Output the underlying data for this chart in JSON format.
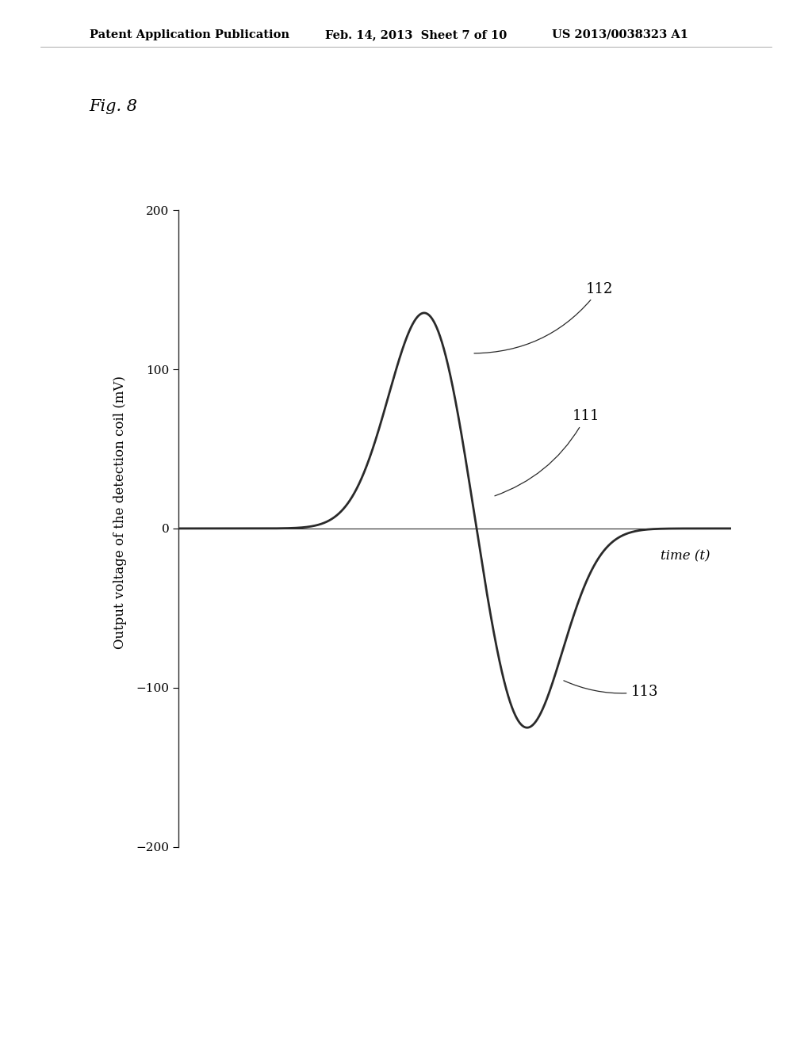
{
  "fig_label": "Fig. 8",
  "header_left": "Patent Application Publication",
  "header_center": "Feb. 14, 2013  Sheet 7 of 10",
  "header_right": "US 2013/0038323 A1",
  "ylabel": "Output voltage of the detection coil (mV)",
  "xlabel": "time (t)",
  "yticks": [
    -200,
    -100,
    0,
    100,
    200
  ],
  "ylim": [
    -220,
    240
  ],
  "xlim": [
    -2.0,
    6.0
  ],
  "curve_color": "#2a2a2a",
  "curve_linewidth": 2.0,
  "background_color": "#ffffff",
  "annotation_111": "111",
  "annotation_112": "112",
  "annotation_113": "113",
  "peak_positive": 140,
  "peak_negative": -130,
  "axis_fontsize": 12,
  "tick_fontsize": 11,
  "fig_label_fontsize": 15,
  "header_fontsize": 10.5
}
